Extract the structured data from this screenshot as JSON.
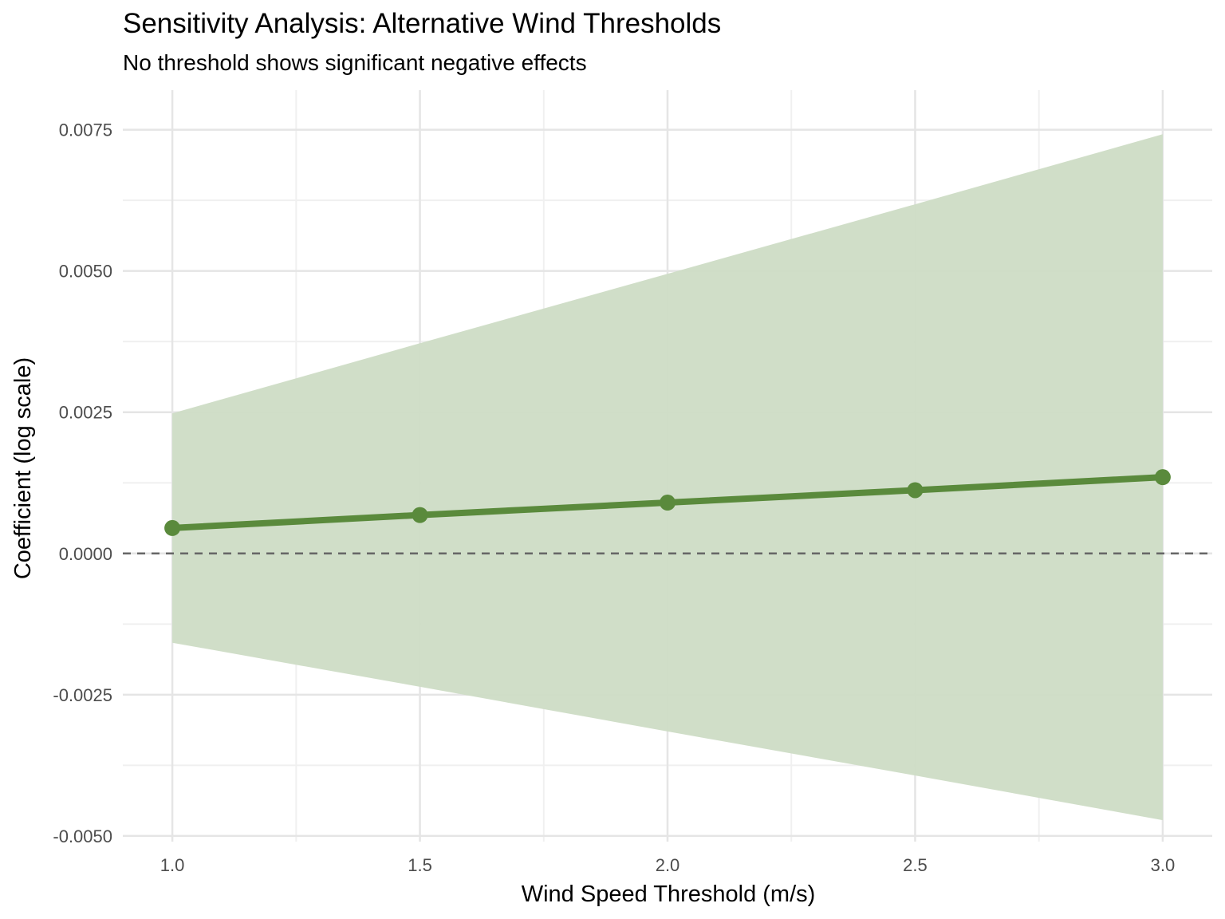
{
  "chart_data": {
    "type": "line",
    "title": "Sensitivity Analysis: Alternative Wind Thresholds",
    "subtitle": "No threshold shows significant negative effects",
    "xlabel": "Wind Speed Threshold (m/s)",
    "ylabel": "Coefficient (log scale)",
    "x": [
      1.0,
      1.5,
      2.0,
      2.5,
      3.0
    ],
    "series": [
      {
        "values": [
          0.00045,
          0.00068,
          0.0009,
          0.00112,
          0.00135
        ],
        "ci_lower": [
          -0.00158,
          -0.00236,
          -0.00315,
          -0.00393,
          -0.00472
        ],
        "ci_upper": [
          0.00248,
          0.00372,
          0.00495,
          0.00618,
          0.00742
        ]
      }
    ],
    "xlim": [
      0.9,
      3.1
    ],
    "ylim": [
      -0.0051,
      0.0082
    ],
    "x_ticks": [
      1.0,
      1.5,
      2.0,
      2.5,
      3.0
    ],
    "x_tick_labels": [
      "1.0",
      "1.5",
      "2.0",
      "2.5",
      "3.0"
    ],
    "y_ticks": [
      -0.005,
      -0.0025,
      0.0,
      0.0025,
      0.005,
      0.0075
    ],
    "y_tick_labels": [
      "-0.0050",
      "-0.0025",
      "0.0000",
      "0.0025",
      "0.0050",
      "0.0075"
    ],
    "reference_line": 0,
    "grid": true,
    "legend": "none",
    "colors": {
      "line": "#5a8a3c",
      "ribbon": "#cddcc5",
      "grid_major": "#e5e5e5",
      "grid_minor": "#f0f0f0",
      "reference": "#666666"
    }
  }
}
